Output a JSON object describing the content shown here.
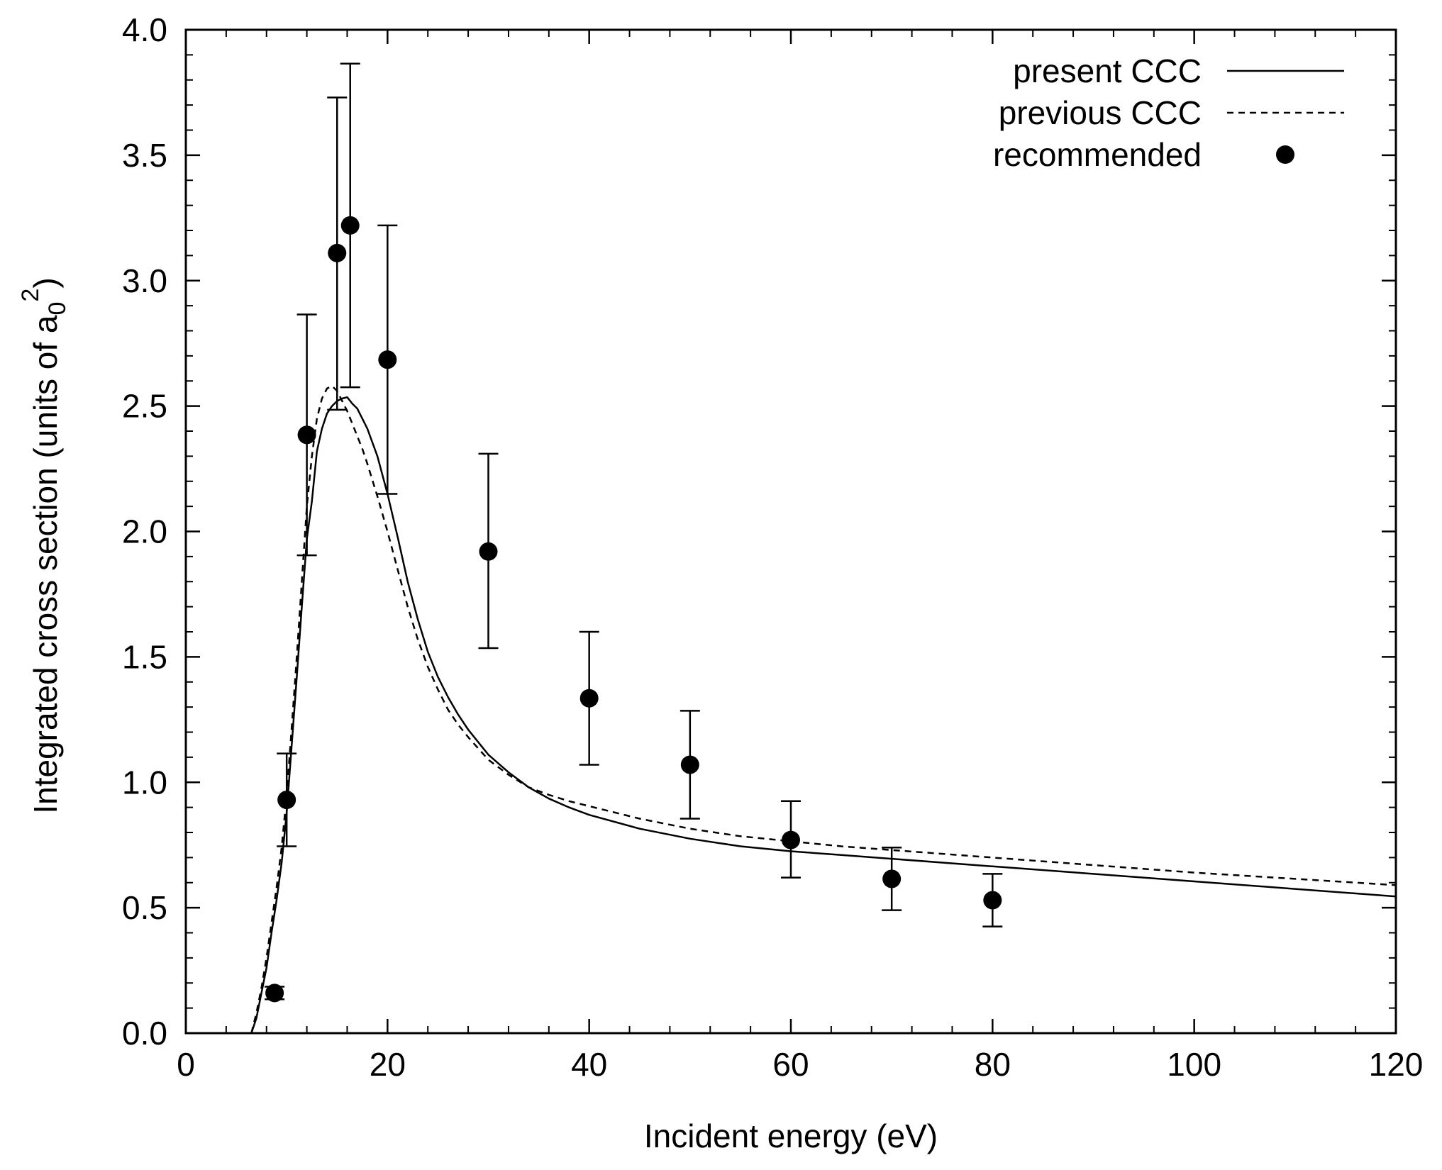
{
  "chart_data": {
    "type": "line",
    "title": "",
    "xlabel": "Incident energy (eV)",
    "ylabel": {
      "prefix": "Integrated cross section (units of a",
      "sub": "0",
      "sup": "2",
      "suffix": ")"
    },
    "xlim": [
      0,
      120
    ],
    "ylim": [
      0,
      4.0
    ],
    "xticks": [
      0,
      20,
      40,
      60,
      80,
      100,
      120
    ],
    "xtick_labels": [
      "0",
      "20",
      "40",
      "60",
      "80",
      "100",
      "120"
    ],
    "xminor_step": 4,
    "yticks": [
      0,
      0.5,
      1.0,
      1.5,
      2.0,
      2.5,
      3.0,
      3.5,
      4.0
    ],
    "ytick_labels": [
      "0.0",
      "0.5",
      "1.0",
      "1.5",
      "2.0",
      "2.5",
      "3.0",
      "3.5",
      "4.0"
    ],
    "yminor_step": 0.1,
    "grid": false,
    "legend_position": "top-right",
    "series": [
      {
        "name": "present CCC",
        "style": "solid",
        "color": "#000000",
        "x": [
          6.5,
          7.0,
          7.5,
          8.0,
          8.5,
          9.0,
          9.5,
          10.0,
          10.5,
          11.0,
          11.5,
          12.0,
          12.5,
          13.0,
          13.5,
          14.0,
          14.5,
          15.0,
          15.5,
          16.0,
          16.5,
          17.0,
          17.5,
          18.0,
          19.0,
          20.0,
          21.0,
          22.0,
          23.0,
          24.0,
          25.0,
          26.0,
          27.0,
          28.0,
          30.0,
          32.0,
          34.0,
          36.0,
          38.0,
          40.0,
          45.0,
          50.0,
          55.0,
          60.0,
          65.0,
          70.0,
          80.0,
          90.0,
          100.0,
          110.0,
          120.0
        ],
        "y": [
          0.0,
          0.06,
          0.16,
          0.26,
          0.4,
          0.53,
          0.68,
          0.88,
          1.15,
          1.42,
          1.7,
          1.97,
          2.12,
          2.32,
          2.41,
          2.47,
          2.5,
          2.52,
          2.53,
          2.535,
          2.51,
          2.49,
          2.45,
          2.41,
          2.3,
          2.15,
          1.98,
          1.8,
          1.65,
          1.52,
          1.42,
          1.34,
          1.27,
          1.21,
          1.11,
          1.04,
          0.98,
          0.935,
          0.9,
          0.87,
          0.815,
          0.775,
          0.745,
          0.725,
          0.71,
          0.695,
          0.665,
          0.635,
          0.605,
          0.575,
          0.545
        ]
      },
      {
        "name": "previous CCC",
        "style": "dashed",
        "color": "#000000",
        "x": [
          6.5,
          7.0,
          7.5,
          8.0,
          8.5,
          9.0,
          9.5,
          10.0,
          10.5,
          11.0,
          11.5,
          12.0,
          12.5,
          13.0,
          13.5,
          14.0,
          14.5,
          15.0,
          15.5,
          16.0,
          16.5,
          17.0,
          17.5,
          18.0,
          19.0,
          20.0,
          21.0,
          22.0,
          23.0,
          24.0,
          25.0,
          26.0,
          27.0,
          28.0,
          30.0,
          32.0,
          34.0,
          36.0,
          38.0,
          40.0,
          45.0,
          50.0,
          55.0,
          60.0,
          65.0,
          70.0,
          80.0,
          90.0,
          100.0,
          110.0,
          120.0
        ],
        "y": [
          0.0,
          0.08,
          0.18,
          0.3,
          0.44,
          0.58,
          0.74,
          0.95,
          1.22,
          1.5,
          1.8,
          2.1,
          2.3,
          2.45,
          2.53,
          2.57,
          2.58,
          2.56,
          2.52,
          2.48,
          2.43,
          2.38,
          2.33,
          2.27,
          2.14,
          2.0,
          1.85,
          1.7,
          1.57,
          1.46,
          1.37,
          1.29,
          1.23,
          1.18,
          1.09,
          1.03,
          0.98,
          0.95,
          0.925,
          0.905,
          0.855,
          0.815,
          0.785,
          0.765,
          0.745,
          0.73,
          0.7,
          0.67,
          0.64,
          0.615,
          0.59
        ]
      },
      {
        "name": "recommended",
        "style": "markers",
        "color": "#000000",
        "x": [
          8.8,
          10.0,
          12.0,
          15.0,
          16.3,
          20.0,
          30.0,
          40.0,
          50.0,
          60.0,
          70.0,
          80.0
        ],
        "y": [
          0.16,
          0.93,
          2.385,
          3.11,
          3.22,
          2.685,
          1.92,
          1.335,
          1.07,
          0.77,
          0.615,
          0.53
        ],
        "err_lo": [
          0.135,
          0.745,
          1.905,
          2.485,
          2.575,
          2.15,
          1.535,
          1.07,
          0.855,
          0.62,
          0.49,
          0.425
        ],
        "err_hi": [
          0.185,
          1.115,
          2.865,
          3.73,
          3.865,
          3.22,
          2.31,
          1.6,
          1.285,
          0.925,
          0.74,
          0.635
        ]
      }
    ]
  }
}
